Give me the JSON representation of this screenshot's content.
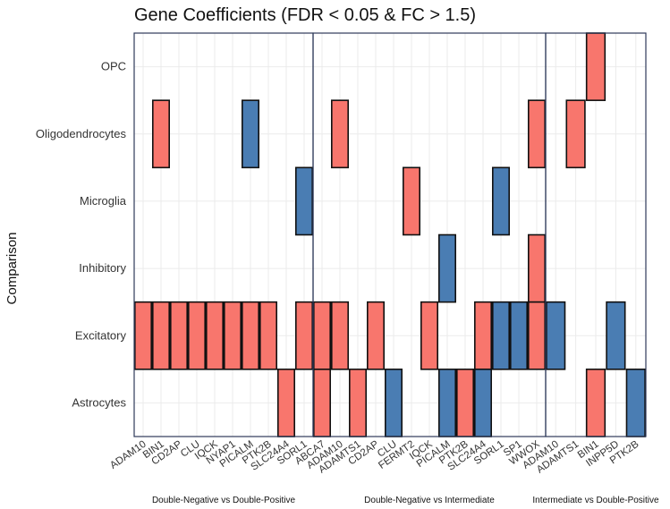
{
  "chart_data": {
    "type": "heatmap",
    "title": "Gene Coefficients (FDR < 0.05 & FC > 1.5)",
    "ylabel": "Comparison",
    "xlabel": "",
    "rows": [
      "OPC",
      "Oligodendrocytes",
      "Microglia",
      "Inhibitory",
      "Excitatory",
      "Astrocytes"
    ],
    "colors": {
      "positive": "#f8766d",
      "negative": "#4a7db3"
    },
    "panels": [
      {
        "name": "Double-Negative vs Double-Positive",
        "genes": [
          "ADAM10",
          "BIN1",
          "CD2AP",
          "CLU",
          "IQCK",
          "NYAP1",
          "PICALM",
          "PTK2B",
          "SLC24A4",
          "SORL1"
        ],
        "cells": [
          {
            "gene": "BIN1",
            "row": "Oligodendrocytes",
            "sign": "positive"
          },
          {
            "gene": "PICALM",
            "row": "Oligodendrocytes",
            "sign": "negative"
          },
          {
            "gene": "SORL1",
            "row": "Microglia",
            "sign": "negative"
          },
          {
            "gene": "ADAM10",
            "row": "Excitatory",
            "sign": "positive"
          },
          {
            "gene": "BIN1",
            "row": "Excitatory",
            "sign": "positive"
          },
          {
            "gene": "CD2AP",
            "row": "Excitatory",
            "sign": "positive"
          },
          {
            "gene": "CLU",
            "row": "Excitatory",
            "sign": "positive"
          },
          {
            "gene": "IQCK",
            "row": "Excitatory",
            "sign": "positive"
          },
          {
            "gene": "NYAP1",
            "row": "Excitatory",
            "sign": "positive"
          },
          {
            "gene": "PICALM",
            "row": "Excitatory",
            "sign": "positive"
          },
          {
            "gene": "PTK2B",
            "row": "Excitatory",
            "sign": "positive"
          },
          {
            "gene": "SORL1",
            "row": "Excitatory",
            "sign": "positive"
          },
          {
            "gene": "SLC24A4",
            "row": "Astrocytes",
            "sign": "positive"
          }
        ]
      },
      {
        "name": "Double-Negative vs Intermediate",
        "genes": [
          "ABCA7",
          "ADAM10",
          "ADAMTS1",
          "CD2AP",
          "CLU",
          "FERMT2",
          "IQCK",
          "PICALM",
          "PTK2B",
          "SLC24A4",
          "SORL1",
          "SP1",
          "WWOX"
        ],
        "cells": [
          {
            "gene": "ADAM10",
            "row": "Oligodendrocytes",
            "sign": "positive"
          },
          {
            "gene": "WWOX",
            "row": "Oligodendrocytes",
            "sign": "positive"
          },
          {
            "gene": "FERMT2",
            "row": "Microglia",
            "sign": "positive"
          },
          {
            "gene": "SORL1",
            "row": "Microglia",
            "sign": "negative"
          },
          {
            "gene": "PICALM",
            "row": "Inhibitory",
            "sign": "negative"
          },
          {
            "gene": "WWOX",
            "row": "Inhibitory",
            "sign": "positive"
          },
          {
            "gene": "ABCA7",
            "row": "Excitatory",
            "sign": "positive"
          },
          {
            "gene": "ADAM10",
            "row": "Excitatory",
            "sign": "positive"
          },
          {
            "gene": "CD2AP",
            "row": "Excitatory",
            "sign": "positive"
          },
          {
            "gene": "IQCK",
            "row": "Excitatory",
            "sign": "positive"
          },
          {
            "gene": "SLC24A4",
            "row": "Excitatory",
            "sign": "positive"
          },
          {
            "gene": "SORL1",
            "row": "Excitatory",
            "sign": "negative"
          },
          {
            "gene": "SP1",
            "row": "Excitatory",
            "sign": "negative"
          },
          {
            "gene": "WWOX",
            "row": "Excitatory",
            "sign": "positive"
          },
          {
            "gene": "ABCA7",
            "row": "Astrocytes",
            "sign": "positive"
          },
          {
            "gene": "ADAMTS1",
            "row": "Astrocytes",
            "sign": "positive"
          },
          {
            "gene": "CLU",
            "row": "Astrocytes",
            "sign": "negative"
          },
          {
            "gene": "PICALM",
            "row": "Astrocytes",
            "sign": "negative"
          },
          {
            "gene": "PTK2B",
            "row": "Astrocytes",
            "sign": "positive"
          },
          {
            "gene": "SLC24A4",
            "row": "Astrocytes",
            "sign": "negative"
          }
        ]
      },
      {
        "name": "Intermediate vs Double-Positive",
        "genes": [
          "ADAM10",
          "ADAMTS1",
          "BIN1",
          "INPP5D",
          "PTK2B"
        ],
        "cells": [
          {
            "gene": "BIN1",
            "row": "OPC",
            "sign": "positive"
          },
          {
            "gene": "ADAMTS1",
            "row": "Oligodendrocytes",
            "sign": "positive"
          },
          {
            "gene": "ADAM10",
            "row": "Excitatory",
            "sign": "negative"
          },
          {
            "gene": "INPP5D",
            "row": "Excitatory",
            "sign": "negative"
          },
          {
            "gene": "BIN1",
            "row": "Astrocytes",
            "sign": "positive"
          },
          {
            "gene": "PTK2B",
            "row": "Astrocytes",
            "sign": "negative"
          }
        ]
      }
    ]
  }
}
